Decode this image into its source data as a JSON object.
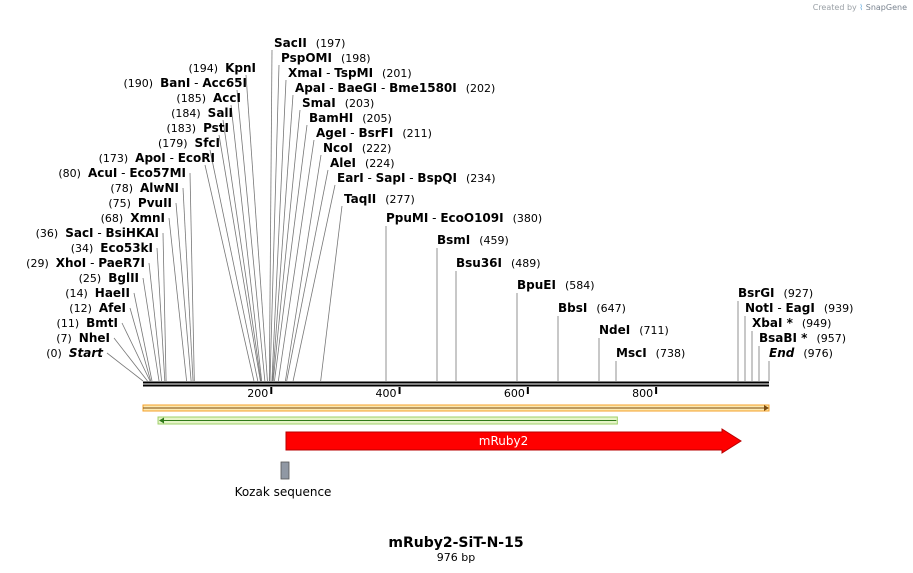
{
  "credit": {
    "created_by": "Created by",
    "logo_glyph": "⌇",
    "brand": "SnapGene"
  },
  "map": {
    "title": "mRuby2-SiT-N-15",
    "length_label": "976 bp",
    "total_bp": 976,
    "ticks": [
      {
        "bp": 200,
        "label": "200"
      },
      {
        "bp": 400,
        "label": "400"
      },
      {
        "bp": 600,
        "label": "600"
      },
      {
        "bp": 800,
        "label": "800"
      }
    ],
    "sites": [
      {
        "pos": 0,
        "pos_label": "(0)",
        "names": [
          "Start"
        ],
        "italic": true
      },
      {
        "pos": 7,
        "pos_label": "(7)",
        "names": [
          "NheI"
        ]
      },
      {
        "pos": 11,
        "pos_label": "(11)",
        "names": [
          "BmtI"
        ]
      },
      {
        "pos": 12,
        "pos_label": "(12)",
        "names": [
          "AfeI"
        ]
      },
      {
        "pos": 14,
        "pos_label": "(14)",
        "names": [
          "HaeII"
        ]
      },
      {
        "pos": 25,
        "pos_label": "(25)",
        "names": [
          "BglII"
        ]
      },
      {
        "pos": 29,
        "pos_label": "(29)",
        "names": [
          "XhoI",
          "PaeR7I"
        ]
      },
      {
        "pos": 34,
        "pos_label": "(34)",
        "names": [
          "Eco53kI"
        ]
      },
      {
        "pos": 36,
        "pos_label": "(36)",
        "names": [
          "SacI",
          "BsiHKAI"
        ]
      },
      {
        "pos": 68,
        "pos_label": "(68)",
        "names": [
          "XmnI"
        ]
      },
      {
        "pos": 75,
        "pos_label": "(75)",
        "names": [
          "PvuII"
        ]
      },
      {
        "pos": 78,
        "pos_label": "(78)",
        "names": [
          "AlwNI"
        ]
      },
      {
        "pos": 80,
        "pos_label": "(80)",
        "names": [
          "AcuI",
          "Eco57MI"
        ]
      },
      {
        "pos": 173,
        "pos_label": "(173)",
        "names": [
          "ApoI",
          "EcoRI"
        ]
      },
      {
        "pos": 179,
        "pos_label": "(179)",
        "names": [
          "SfcI"
        ]
      },
      {
        "pos": 183,
        "pos_label": "(183)",
        "names": [
          "PstI"
        ]
      },
      {
        "pos": 184,
        "pos_label": "(184)",
        "names": [
          "SalI"
        ]
      },
      {
        "pos": 185,
        "pos_label": "(185)",
        "names": [
          "AccI"
        ]
      },
      {
        "pos": 190,
        "pos_label": "(190)",
        "names": [
          "BanI",
          "Acc65I"
        ]
      },
      {
        "pos": 194,
        "pos_label": "(194)",
        "names": [
          "KpnI"
        ]
      },
      {
        "pos": 197,
        "pos_label": "(197)",
        "names": [
          "SacII"
        ]
      },
      {
        "pos": 198,
        "pos_label": "(198)",
        "names": [
          "PspOMI"
        ]
      },
      {
        "pos": 201,
        "pos_label": "(201)",
        "names": [
          "XmaI",
          "TspMI"
        ]
      },
      {
        "pos": 202,
        "pos_label": "(202)",
        "names": [
          "ApaI",
          "BaeGI",
          "Bme1580I"
        ]
      },
      {
        "pos": 203,
        "pos_label": "(203)",
        "names": [
          "SmaI"
        ]
      },
      {
        "pos": 205,
        "pos_label": "(205)",
        "names": [
          "BamHI"
        ]
      },
      {
        "pos": 211,
        "pos_label": "(211)",
        "names": [
          "AgeI",
          "BsrFI"
        ]
      },
      {
        "pos": 222,
        "pos_label": "(222)",
        "names": [
          "NcoI"
        ]
      },
      {
        "pos": 224,
        "pos_label": "(224)",
        "names": [
          "AleI"
        ]
      },
      {
        "pos": 234,
        "pos_label": "(234)",
        "names": [
          "EarI",
          "SapI",
          "BspQI"
        ]
      },
      {
        "pos": 277,
        "pos_label": "(277)",
        "names": [
          "TaqII"
        ]
      },
      {
        "pos": 380,
        "pos_label": "(380)",
        "names": [
          "PpuMI",
          "EcoO109I"
        ]
      },
      {
        "pos": 459,
        "pos_label": "(459)",
        "names": [
          "BsmI"
        ]
      },
      {
        "pos": 489,
        "pos_label": "(489)",
        "names": [
          "Bsu36I"
        ]
      },
      {
        "pos": 584,
        "pos_label": "(584)",
        "names": [
          "BpuEI"
        ]
      },
      {
        "pos": 647,
        "pos_label": "(647)",
        "names": [
          "BbsI"
        ]
      },
      {
        "pos": 711,
        "pos_label": "(711)",
        "names": [
          "NdeI"
        ]
      },
      {
        "pos": 738,
        "pos_label": "(738)",
        "names": [
          "MscI"
        ]
      },
      {
        "pos": 927,
        "pos_label": "(927)",
        "names": [
          "BsrGI"
        ]
      },
      {
        "pos": 939,
        "pos_label": "(939)",
        "names": [
          "NotI",
          "EagI"
        ]
      },
      {
        "pos": 949,
        "pos_label": "(949)",
        "names": [
          "XbaI *"
        ]
      },
      {
        "pos": 957,
        "pos_label": "(957)",
        "names": [
          "BsaBI *"
        ]
      },
      {
        "pos": 976,
        "pos_label": "(976)",
        "names": [
          "End"
        ],
        "italic": true
      }
    ],
    "features": [
      {
        "name": "full-length-bar",
        "start": 0,
        "end": 976,
        "direction": "forward",
        "color": "#f4a028",
        "label": ""
      },
      {
        "name": "green-bar",
        "start": 25,
        "end": 738,
        "direction": "reverse",
        "color": "#5aa832",
        "label": ""
      },
      {
        "name": "mruby2-arrow",
        "start": 222,
        "end": 930,
        "direction": "forward",
        "color": "#ff0000",
        "label": "mRuby2"
      },
      {
        "name": "kozak-sequence",
        "start": 212,
        "end": 222,
        "direction": "none",
        "color": "#9098a4",
        "label": "Kozak sequence"
      }
    ]
  }
}
